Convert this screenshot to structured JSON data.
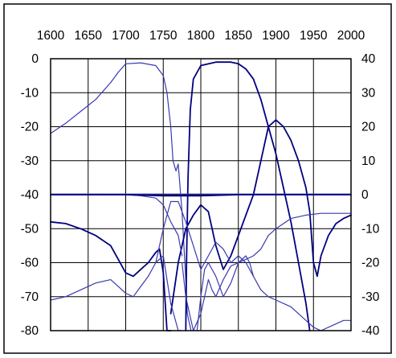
{
  "chart_data": {
    "type": "line",
    "title": "",
    "xlabel": "",
    "ylabel": "",
    "y2label": "",
    "x_ticks": [
      1600,
      1650,
      1700,
      1750,
      1800,
      1850,
      1900,
      1950,
      2000
    ],
    "y_ticks": [
      0,
      -10,
      -20,
      -30,
      -40,
      -50,
      -60,
      -70,
      -80
    ],
    "y2_ticks": [
      40,
      30,
      20,
      10,
      0,
      -10,
      -20,
      -30,
      -40
    ],
    "xlim": [
      1600,
      2000
    ],
    "ylim": [
      -80,
      0
    ],
    "y2lim": [
      -40,
      40
    ],
    "grid": true,
    "legend": "none",
    "colors": {
      "dark": "#000080",
      "light": "#3a3ab0",
      "frame": "#000000"
    },
    "series": [
      {
        "axis": "left",
        "shade": "light",
        "x": [
          1600,
          1620,
          1640,
          1660,
          1680,
          1690,
          1700,
          1720,
          1740,
          1750,
          1755,
          1760,
          1763,
          1767,
          1770,
          1775,
          1780,
          1782,
          1787
        ],
        "y": [
          -22,
          -19,
          -15.5,
          -12,
          -7,
          -4,
          -1.5,
          -1.2,
          -2,
          -5,
          -10,
          -20,
          -30,
          -33,
          -31,
          -45,
          -65,
          -75,
          -80
        ]
      },
      {
        "axis": "left",
        "shade": "dark",
        "x": [
          1780,
          1781,
          1783,
          1786,
          1790,
          1800,
          1820,
          1840,
          1850,
          1860,
          1870,
          1880,
          1890,
          1900,
          1910,
          1920,
          1930,
          1940,
          1945
        ],
        "y": [
          -80,
          -60,
          -35,
          -15,
          -6,
          -2,
          -1,
          -1,
          -1.5,
          -3,
          -6,
          -12,
          -20,
          -28,
          -38,
          -48,
          -60,
          -72,
          -80
        ]
      },
      {
        "axis": "left",
        "shade": "dark",
        "x": [
          1600,
          1620,
          1640,
          1660,
          1680,
          1690,
          1700,
          1710,
          1720,
          1730,
          1740,
          1745,
          1750,
          1755,
          1757,
          1760
        ],
        "y": [
          -48,
          -48.5,
          -50,
          -52,
          -55,
          -59,
          -63,
          -64,
          -62,
          -60,
          -57,
          -56,
          -63,
          -80,
          -80,
          -80
        ]
      },
      {
        "axis": "left",
        "shade": "dark",
        "x": [
          1760,
          1770,
          1780,
          1790,
          1800,
          1810,
          1820,
          1830,
          1840,
          1850,
          1860,
          1870,
          1880,
          1890,
          1900,
          1910,
          1920,
          1930,
          1940,
          1945,
          1950,
          1955,
          1960,
          1970,
          1980,
          1990,
          2000
        ],
        "y": [
          -75,
          -60,
          -50,
          -46,
          -43,
          -45,
          -55,
          -62,
          -58,
          -52,
          -46,
          -40,
          -30,
          -20,
          -18,
          -20,
          -24,
          -30,
          -38,
          -45,
          -60,
          -64,
          -58,
          -52,
          -48.5,
          -47,
          -46
        ]
      },
      {
        "axis": "left",
        "shade": "light",
        "x": [
          1600,
          1620,
          1640,
          1660,
          1680,
          1690,
          1700,
          1710,
          1720,
          1730,
          1740,
          1750,
          1755,
          1760,
          1765,
          1770,
          1773
        ],
        "y": [
          -71,
          -70,
          -68,
          -66,
          -65,
          -67,
          -69,
          -70,
          -67,
          -64,
          -60,
          -58,
          -65,
          -72,
          -76,
          -80,
          -80
        ]
      },
      {
        "axis": "right",
        "shade": "light",
        "x": [
          1600,
          1650,
          1700,
          1720,
          1740,
          1750,
          1760,
          1770,
          1775
        ],
        "y": [
          0,
          0,
          0,
          -0.3,
          -1,
          -3,
          -8,
          -12,
          -18
        ]
      },
      {
        "axis": "right",
        "shade": "light",
        "x": [
          1775,
          1780,
          1790,
          1800,
          1810,
          1815,
          1820,
          1830,
          1840,
          1850,
          1860,
          1870,
          1880,
          1890,
          1900,
          1920,
          1940,
          1960,
          1980,
          2000
        ],
        "y": [
          -20,
          -30,
          -40,
          -35,
          -25,
          -28,
          -30,
          -25,
          -21,
          -20,
          -19,
          -18,
          -16,
          -12,
          -10,
          -7,
          -6,
          -5.5,
          -5.5,
          -5.5
        ]
      },
      {
        "axis": "right",
        "shade": "light",
        "x": [
          1600,
          1650,
          1700,
          1750,
          1800,
          1850,
          1900,
          1950,
          2000
        ],
        "y": [
          0.2,
          0.2,
          0.2,
          0.2,
          0.2,
          0.2,
          0.2,
          0.2,
          0.2
        ]
      },
      {
        "axis": "left",
        "shade": "dark",
        "x": [
          1600,
          1650,
          1700,
          1750,
          1800,
          1850,
          1900,
          1950,
          2000
        ],
        "y": [
          -40,
          -40,
          -40,
          -40.3,
          -40.3,
          -40,
          -40,
          -40,
          -40
        ]
      },
      {
        "axis": "left",
        "shade": "light",
        "x": [
          1740,
          1750,
          1760,
          1770,
          1780,
          1790,
          1800,
          1810,
          1820,
          1830,
          1840,
          1850,
          1860,
          1870,
          1880,
          1890,
          1900,
          1910,
          1920,
          1930,
          1940,
          1950,
          1960,
          1970,
          1980,
          1990,
          2000
        ],
        "y": [
          -60,
          -50,
          -42,
          -42,
          -48,
          -55,
          -62,
          -58,
          -54,
          -56,
          -60,
          -58,
          -60,
          -64,
          -68,
          -70,
          -71,
          -72,
          -73,
          -75,
          -77,
          -79,
          -80,
          -79,
          -78,
          -77,
          -77
        ]
      },
      {
        "axis": "left",
        "shade": "light",
        "x": [
          1795,
          1800,
          1805,
          1810,
          1820,
          1830,
          1840,
          1850,
          1860,
          1865,
          1870
        ],
        "y": [
          -80,
          -70,
          -62,
          -60,
          -64,
          -70,
          -66,
          -60,
          -58,
          -60,
          -64
        ]
      }
    ]
  }
}
